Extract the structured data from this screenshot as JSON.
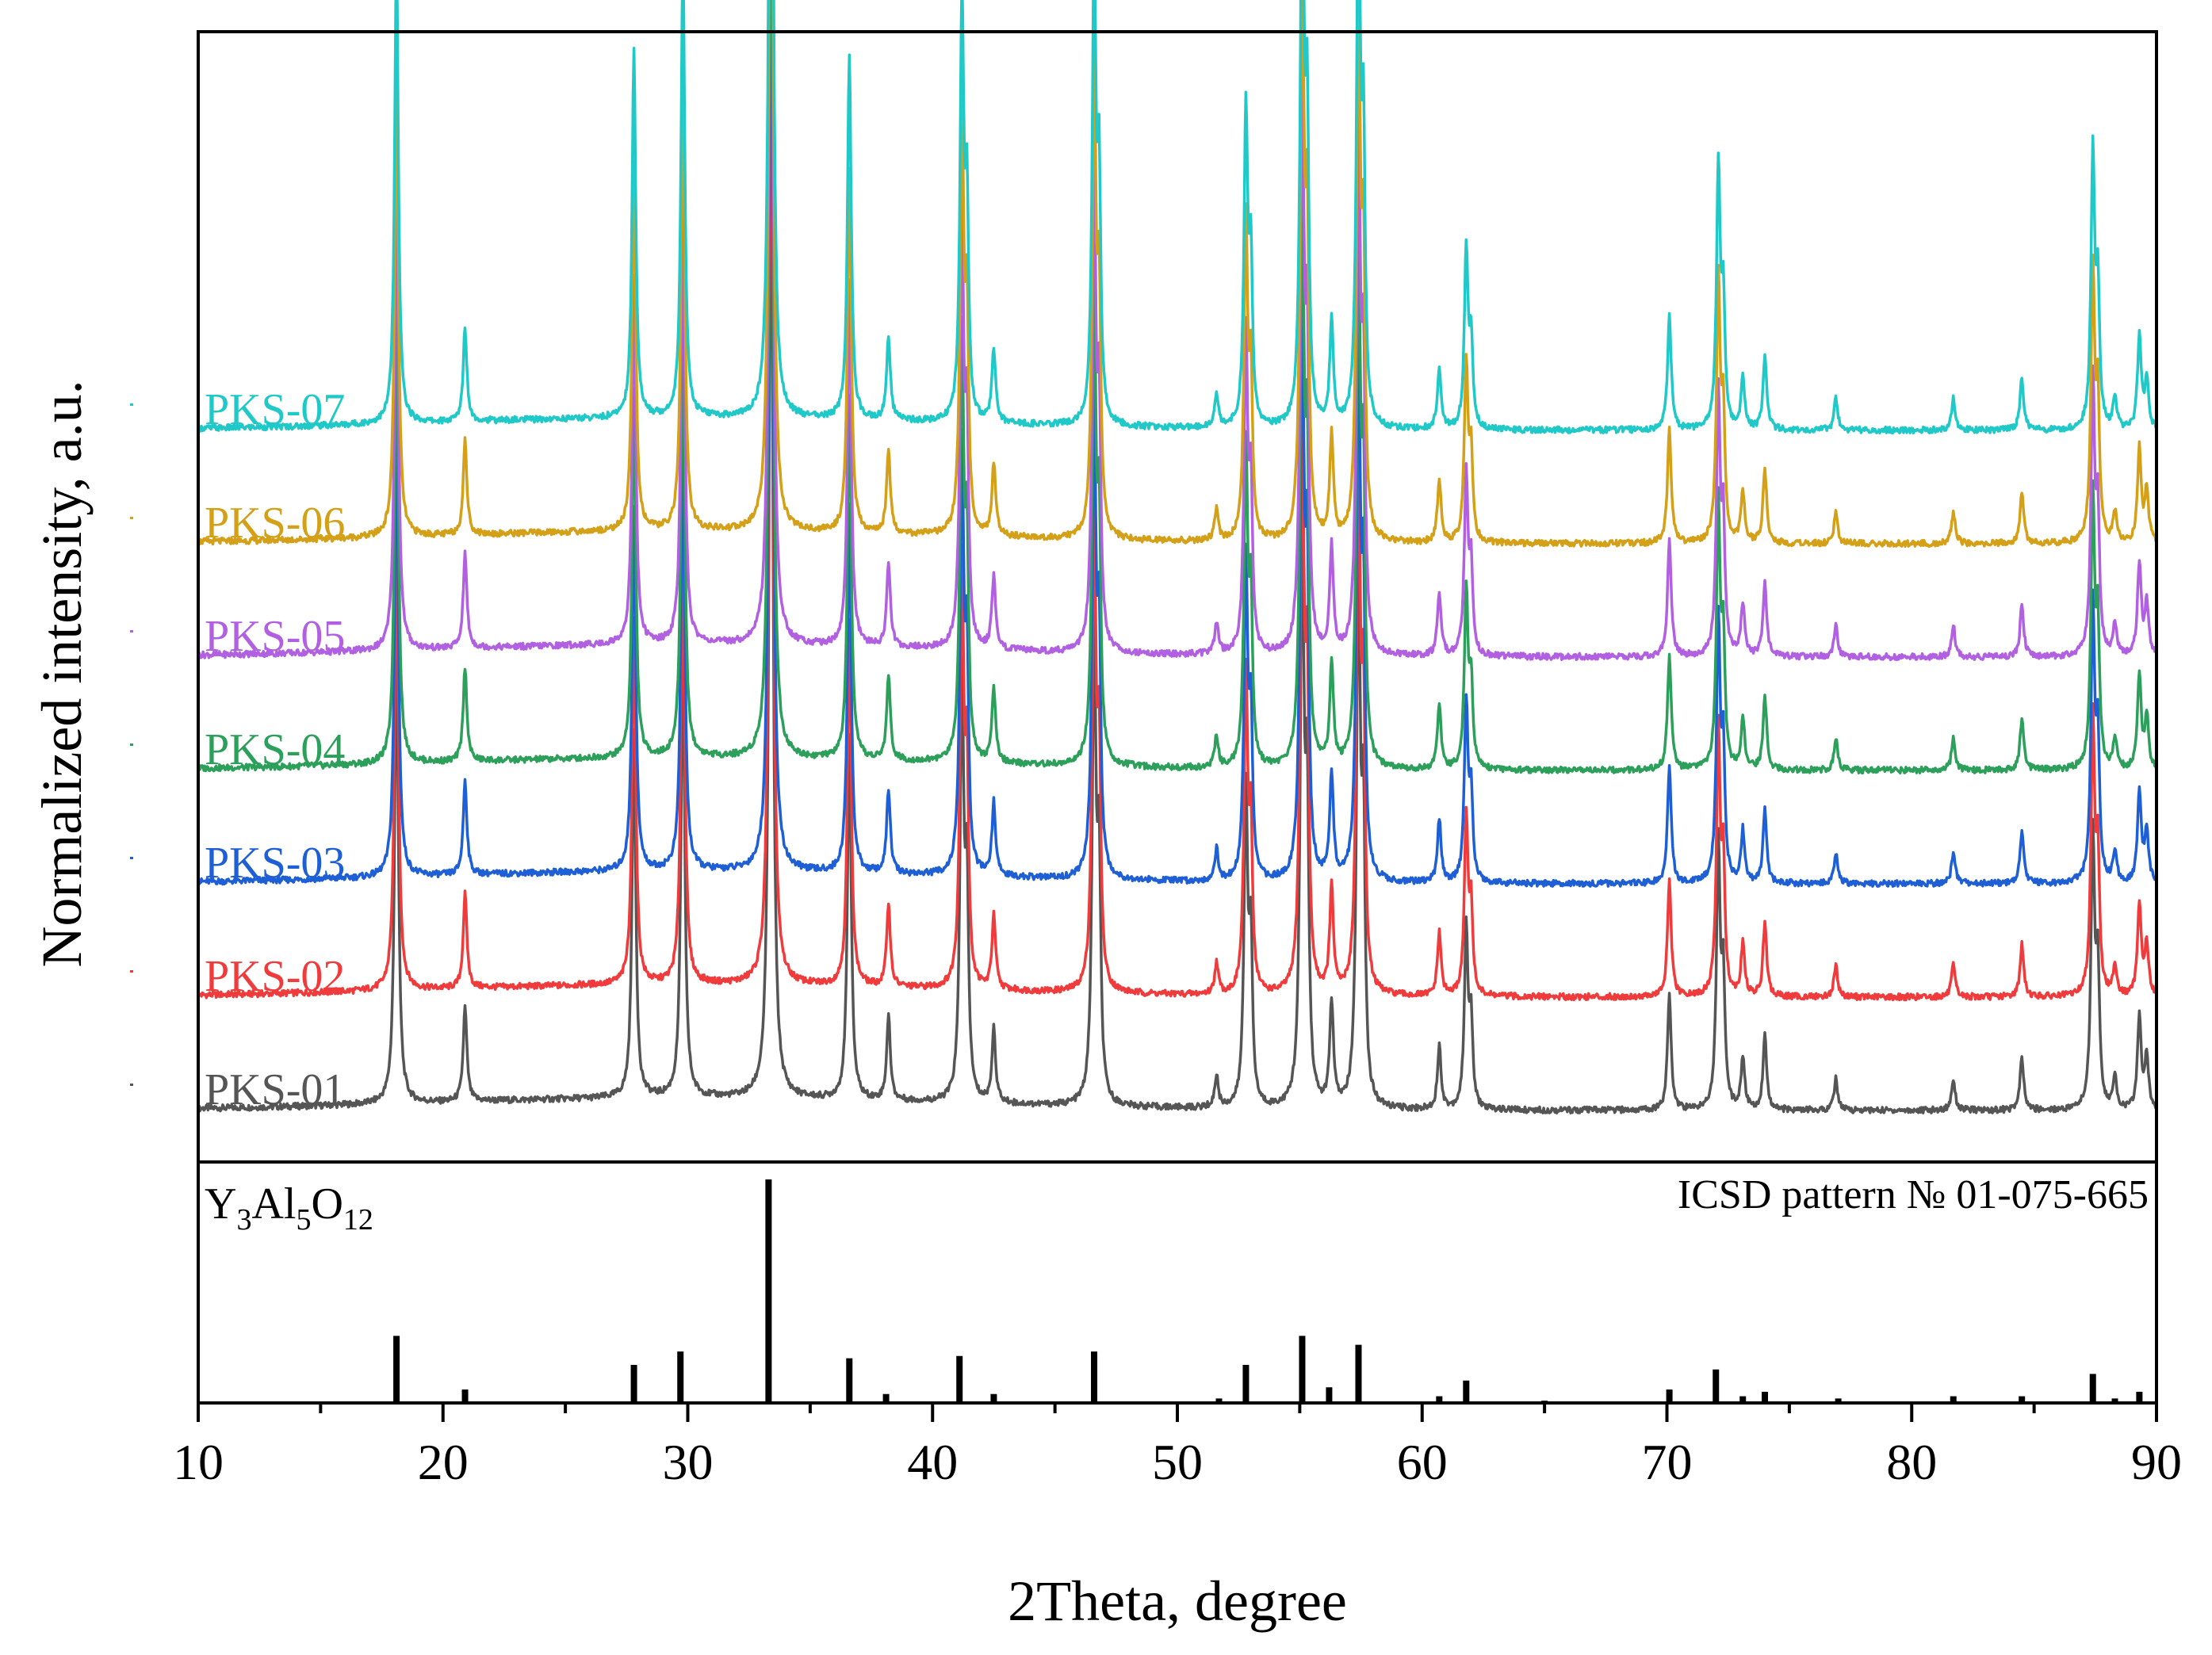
{
  "chart_data": {
    "type": "line",
    "title": "",
    "xlabel": "2Theta, degree",
    "ylabel": "Normalized intensity, a.u.",
    "xlim": [
      10,
      90
    ],
    "xticks": [
      10,
      20,
      30,
      40,
      50,
      60,
      70,
      80,
      90
    ],
    "tick_labels": [
      "10",
      "20",
      "30",
      "40",
      "50",
      "60",
      "70",
      "80",
      "90"
    ],
    "series": [
      {
        "name": "PKS-01",
        "color": "#555555",
        "offset": 0
      },
      {
        "name": "PKS-02",
        "color": "#ef3b3b",
        "offset": 1
      },
      {
        "name": "PKS-03",
        "color": "#1f5fd6",
        "offset": 2
      },
      {
        "name": "PKS-04",
        "color": "#2ca05a",
        "offset": 3
      },
      {
        "name": "PKS-05",
        "color": "#b060e0",
        "offset": 4
      },
      {
        "name": "PKS-06",
        "color": "#d4a017",
        "offset": 5
      },
      {
        "name": "PKS-07",
        "color": "#20c8c8",
        "offset": 6
      }
    ],
    "peaks": [
      {
        "x": 18.1,
        "i": 0.45,
        "w": 0.09
      },
      {
        "x": 20.9,
        "i": 0.09,
        "w": 0.09
      },
      {
        "x": 27.8,
        "i": 0.35,
        "w": 0.09
      },
      {
        "x": 29.8,
        "i": 0.44,
        "w": 0.09
      },
      {
        "x": 33.4,
        "i": 1.0,
        "w": 0.09
      },
      {
        "x": 36.6,
        "i": 0.35,
        "w": 0.09
      },
      {
        "x": 38.2,
        "i": 0.08,
        "w": 0.09
      },
      {
        "x": 41.2,
        "i": 0.4,
        "w": 0.09
      },
      {
        "x": 41.4,
        "i": 0.2,
        "w": 0.08
      },
      {
        "x": 42.5,
        "i": 0.07,
        "w": 0.09
      },
      {
        "x": 46.6,
        "i": 0.45,
        "w": 0.09
      },
      {
        "x": 46.8,
        "i": 0.22,
        "w": 0.08
      },
      {
        "x": 51.6,
        "i": 0.03,
        "w": 0.09
      },
      {
        "x": 52.8,
        "i": 0.3,
        "w": 0.09
      },
      {
        "x": 53.0,
        "i": 0.15,
        "w": 0.08
      },
      {
        "x": 55.1,
        "i": 0.55,
        "w": 0.09
      },
      {
        "x": 55.3,
        "i": 0.28,
        "w": 0.08
      },
      {
        "x": 56.3,
        "i": 0.1,
        "w": 0.09
      },
      {
        "x": 57.4,
        "i": 0.52,
        "w": 0.09
      },
      {
        "x": 57.6,
        "i": 0.26,
        "w": 0.08
      },
      {
        "x": 60.7,
        "i": 0.06,
        "w": 0.09
      },
      {
        "x": 61.8,
        "i": 0.17,
        "w": 0.09
      },
      {
        "x": 62.0,
        "i": 0.08,
        "w": 0.08
      },
      {
        "x": 70.1,
        "i": 0.11,
        "w": 0.09
      },
      {
        "x": 72.1,
        "i": 0.25,
        "w": 0.09
      },
      {
        "x": 72.3,
        "i": 0.12,
        "w": 0.08
      },
      {
        "x": 73.1,
        "i": 0.05,
        "w": 0.09
      },
      {
        "x": 74.0,
        "i": 0.07,
        "w": 0.09
      },
      {
        "x": 76.9,
        "i": 0.03,
        "w": 0.09
      },
      {
        "x": 81.7,
        "i": 0.03,
        "w": 0.09
      },
      {
        "x": 84.5,
        "i": 0.05,
        "w": 0.09
      },
      {
        "x": 87.4,
        "i": 0.26,
        "w": 0.09
      },
      {
        "x": 87.6,
        "i": 0.13,
        "w": 0.08
      },
      {
        "x": 88.3,
        "i": 0.03,
        "w": 0.09
      },
      {
        "x": 89.3,
        "i": 0.09,
        "w": 0.09
      },
      {
        "x": 89.6,
        "i": 0.05,
        "w": 0.09
      }
    ],
    "reference": {
      "compound": "Y3Al5O12",
      "formula_parts": {
        "e1": "Y",
        "s1": "3",
        "e2": "Al",
        "s2": "5",
        "e3": "O",
        "s3": "12"
      },
      "label": "ICSD pattern № 01-075-665",
      "lines": [
        {
          "x": 18.1,
          "i": 0.3
        },
        {
          "x": 20.9,
          "i": 0.06
        },
        {
          "x": 27.8,
          "i": 0.17
        },
        {
          "x": 29.7,
          "i": 0.23
        },
        {
          "x": 33.3,
          "i": 1.0
        },
        {
          "x": 36.6,
          "i": 0.2
        },
        {
          "x": 38.1,
          "i": 0.04
        },
        {
          "x": 41.1,
          "i": 0.21
        },
        {
          "x": 42.5,
          "i": 0.04
        },
        {
          "x": 46.6,
          "i": 0.23
        },
        {
          "x": 51.7,
          "i": 0.02
        },
        {
          "x": 52.8,
          "i": 0.17
        },
        {
          "x": 55.1,
          "i": 0.3
        },
        {
          "x": 56.2,
          "i": 0.07
        },
        {
          "x": 57.4,
          "i": 0.26
        },
        {
          "x": 60.7,
          "i": 0.03
        },
        {
          "x": 61.8,
          "i": 0.1
        },
        {
          "x": 65.0,
          "i": 0.01
        },
        {
          "x": 70.1,
          "i": 0.06
        },
        {
          "x": 72.0,
          "i": 0.15
        },
        {
          "x": 73.1,
          "i": 0.03
        },
        {
          "x": 74.0,
          "i": 0.05
        },
        {
          "x": 77.0,
          "i": 0.02
        },
        {
          "x": 81.7,
          "i": 0.03
        },
        {
          "x": 84.5,
          "i": 0.03
        },
        {
          "x": 87.4,
          "i": 0.13
        },
        {
          "x": 88.3,
          "i": 0.02
        },
        {
          "x": 89.3,
          "i": 0.05
        }
      ]
    }
  }
}
